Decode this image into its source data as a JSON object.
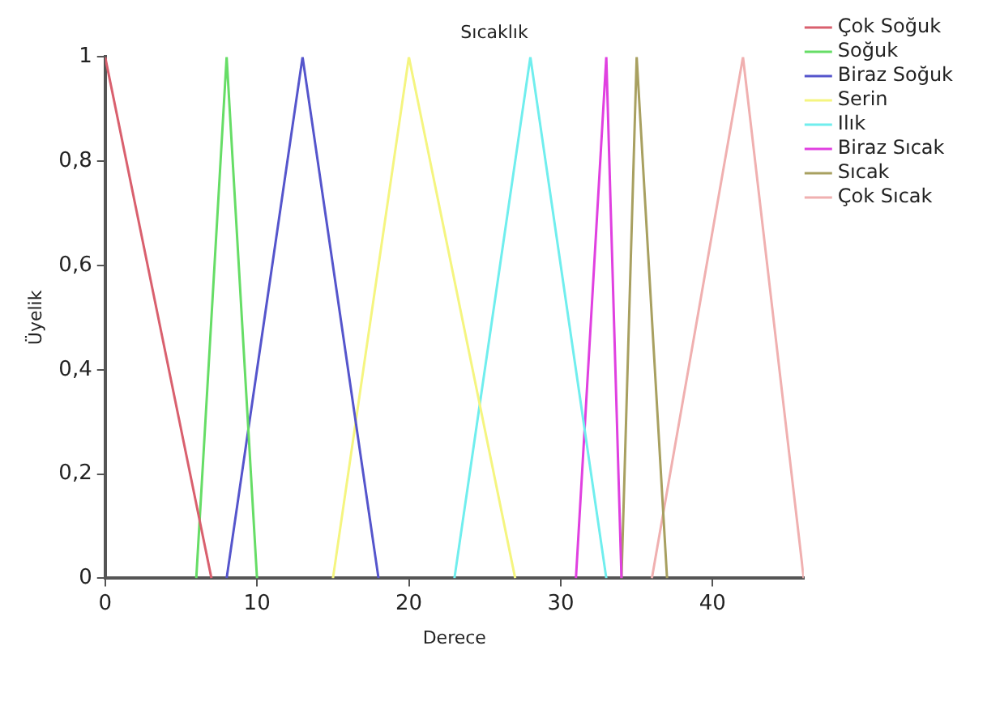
{
  "chart_data": {
    "type": "line",
    "title": "Sıcaklık",
    "xlabel": "Derece",
    "ylabel": "Üyelik",
    "xlim": [
      0,
      46
    ],
    "xticks": [
      0,
      10,
      20,
      30,
      40
    ],
    "ylim": [
      0,
      1
    ],
    "yticks": [
      0,
      {
        "value": 0.2,
        "label": "0,2"
      },
      {
        "value": 0.4,
        "label": "0,4"
      },
      {
        "value": 0.6,
        "label": "0,6"
      },
      {
        "value": 0.8,
        "label": "0,8"
      },
      1
    ],
    "grid": false,
    "legend": "right",
    "marker": "none",
    "line_style": "solid",
    "series": [
      {
        "name": "Çok Soğuk",
        "color": "#d9606e",
        "x": [
          0,
          7
        ],
        "values": [
          1,
          0
        ]
      },
      {
        "name": "Soğuk",
        "color": "#66dd66",
        "x": [
          6,
          8,
          10
        ],
        "values": [
          0,
          1,
          0
        ]
      },
      {
        "name": "Biraz Soğuk",
        "color": "#5555cc",
        "x": [
          8,
          13,
          18
        ],
        "values": [
          0,
          1,
          0
        ]
      },
      {
        "name": "Serin",
        "color": "#f5f580",
        "x": [
          15,
          20,
          27
        ],
        "values": [
          0,
          1,
          0
        ]
      },
      {
        "name": "Ilık",
        "color": "#70eeee",
        "x": [
          23,
          28,
          33
        ],
        "values": [
          0,
          1,
          0
        ]
      },
      {
        "name": "Biraz Sıcak",
        "color": "#e040e0",
        "x": [
          31,
          33,
          34
        ],
        "values": [
          0,
          1,
          0
        ]
      },
      {
        "name": "Sıcak",
        "color": "#a8a060",
        "x": [
          34,
          35,
          37
        ],
        "values": [
          0,
          1,
          0
        ]
      },
      {
        "name": "Çok Sıcak",
        "color": "#f0b0b0",
        "x": [
          36,
          42,
          46
        ],
        "values": [
          0,
          1,
          0
        ]
      }
    ]
  }
}
